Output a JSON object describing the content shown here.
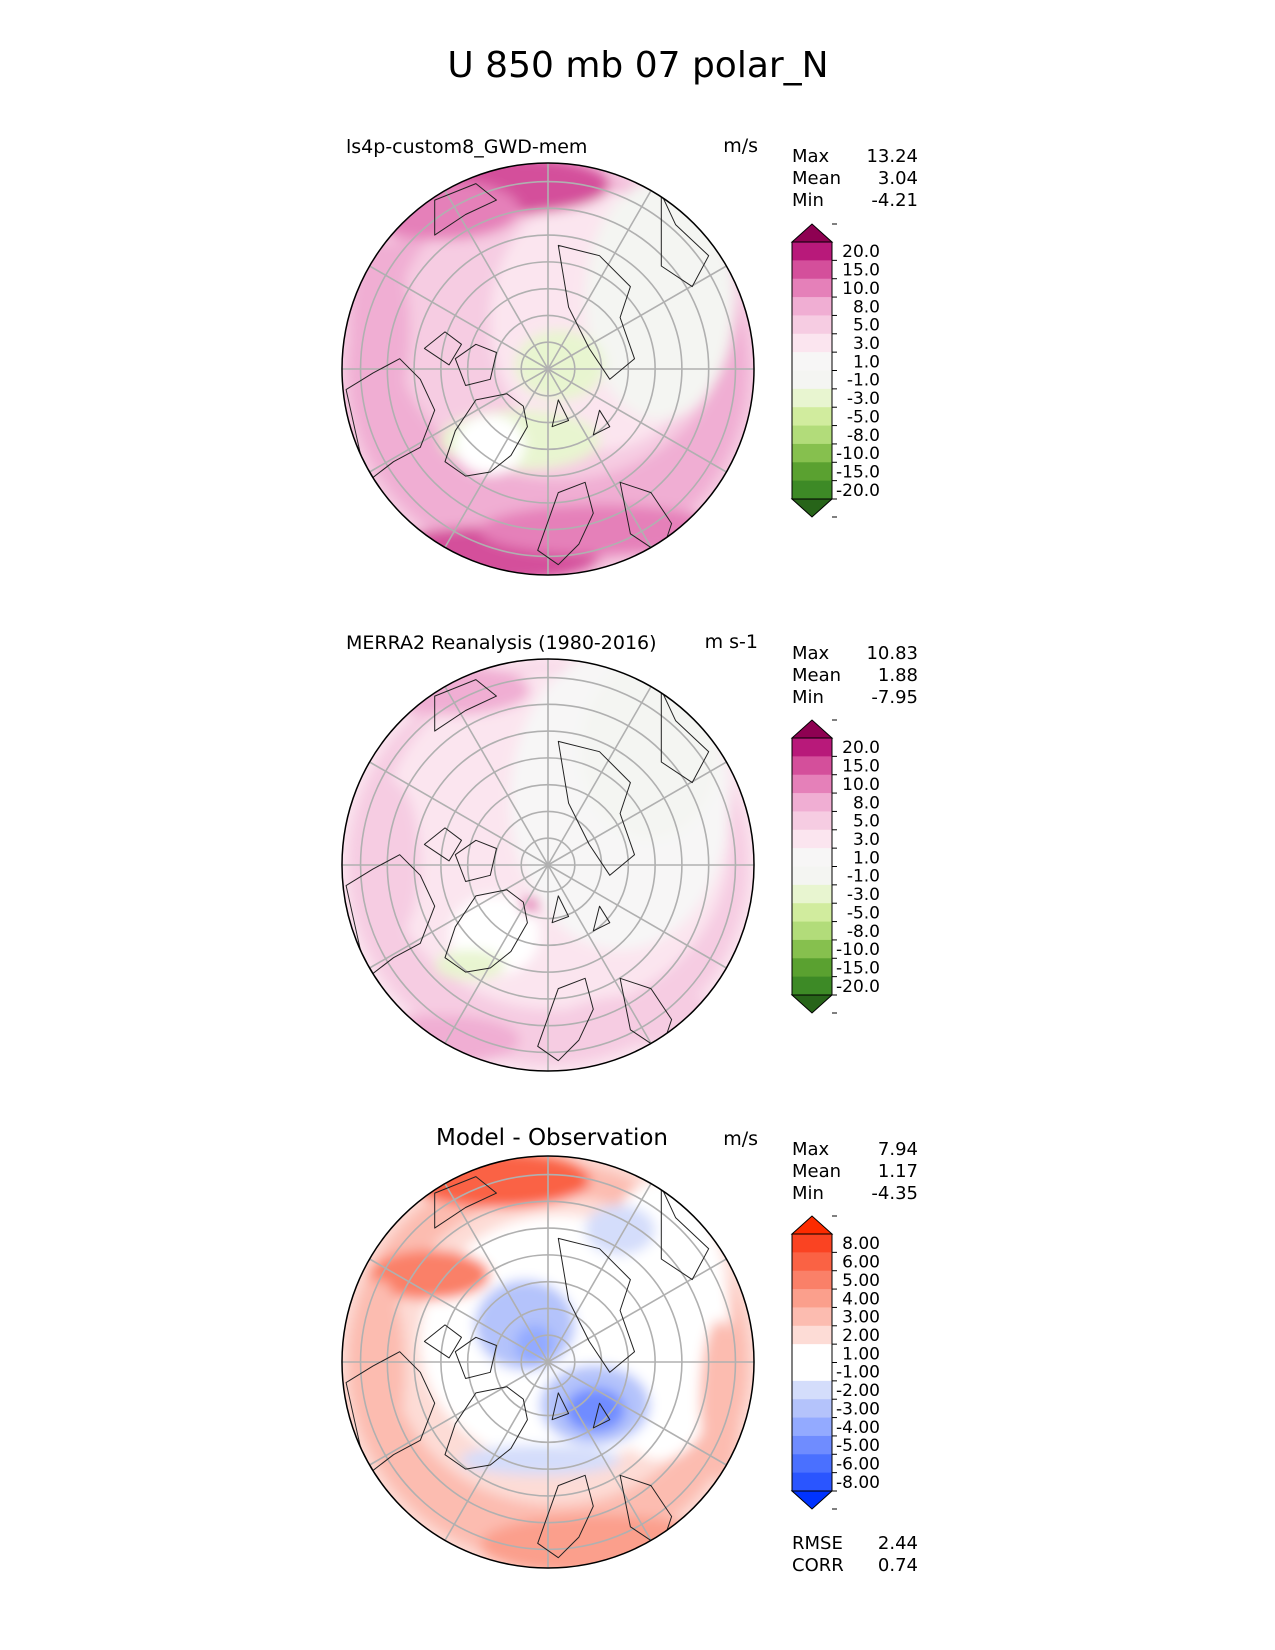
{
  "figure": {
    "title": "U 850 mb 07 polar_N"
  },
  "colors": {
    "coastline": "#222222",
    "grid": "#b0b0b0",
    "green_pink": [
      "#276419",
      "#3d8a26",
      "#5aa130",
      "#86c04e",
      "#b2dc7a",
      "#d1ec9e",
      "#e8f5d0",
      "#f4f5f2",
      "#f7f6f6",
      "#fbe5ef",
      "#f6cce2",
      "#f0aed3",
      "#e580b9",
      "#d44f9b",
      "#b8197a",
      "#8e0152"
    ],
    "diff": [
      "#0033ff",
      "#2a55ff",
      "#4a70ff",
      "#6f8cff",
      "#93aaff",
      "#b4c3fb",
      "#d4ddfb",
      "#ffffff",
      "#ffffff",
      "#fddcd6",
      "#fcbcb0",
      "#fb9f8c",
      "#fa8068",
      "#fa6244",
      "#fa4322",
      "#fd2b00"
    ]
  },
  "chart_data": [
    {
      "type": "heatmap",
      "name": "model",
      "title": "ls4p-custom8_GWD-mem",
      "units": "m/s",
      "stats": [
        {
          "label": "Max",
          "value": "13.24"
        },
        {
          "label": "Mean",
          "value": "3.04"
        },
        {
          "label": "Min",
          "value": "-4.21"
        }
      ],
      "colorbar": {
        "levels": [
          "20.0",
          "15.0",
          "10.0",
          "8.0",
          "5.0",
          "3.0",
          "1.0",
          "-1.0",
          "-3.0",
          "-5.0",
          "-8.0",
          "-10.0",
          "-15.0",
          "-20.0"
        ],
        "extend": "both"
      },
      "field_summary": {
        "max": 13.24,
        "mean": 3.04,
        "min": -4.21
      }
    },
    {
      "type": "heatmap",
      "name": "observation",
      "title": "MERRA2 Reanalysis (1980-2016)",
      "units": "m s-1",
      "stats": [
        {
          "label": "Max",
          "value": "10.83"
        },
        {
          "label": "Mean",
          "value": "1.88"
        },
        {
          "label": "Min",
          "value": "-7.95"
        }
      ],
      "colorbar": {
        "levels": [
          "20.0",
          "15.0",
          "10.0",
          "8.0",
          "5.0",
          "3.0",
          "1.0",
          "-1.0",
          "-3.0",
          "-5.0",
          "-8.0",
          "-10.0",
          "-15.0",
          "-20.0"
        ],
        "extend": "both"
      },
      "field_summary": {
        "max": 10.83,
        "mean": 1.88,
        "min": -7.95
      }
    },
    {
      "type": "heatmap",
      "name": "difference",
      "title": "Model - Observation",
      "units": "m/s",
      "stats": [
        {
          "label": "Max",
          "value": "7.94"
        },
        {
          "label": "Mean",
          "value": "1.17"
        },
        {
          "label": "Min",
          "value": "-4.35"
        }
      ],
      "colorbar": {
        "levels": [
          "8.00",
          "6.00",
          "5.00",
          "4.00",
          "3.00",
          "2.00",
          "1.00",
          "-1.00",
          "-2.00",
          "-3.00",
          "-4.00",
          "-5.00",
          "-6.00",
          "-8.00"
        ],
        "extend": "both"
      },
      "metrics": [
        {
          "label": "RMSE",
          "value": "2.44"
        },
        {
          "label": "CORR",
          "value": "0.74"
        }
      ],
      "field_summary": {
        "max": 7.94,
        "mean": 1.17,
        "min": -4.35
      }
    }
  ]
}
